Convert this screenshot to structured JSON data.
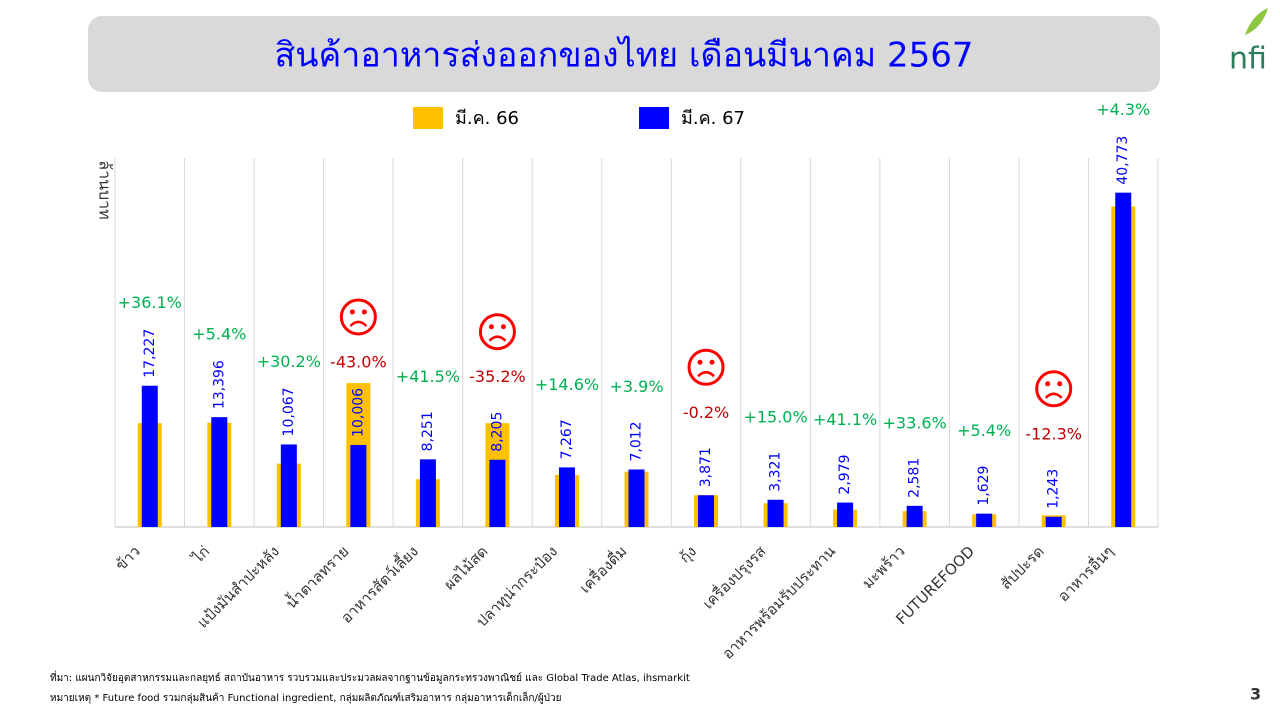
{
  "chart_data": {
    "type": "bar",
    "title": "สินค้าอาหารส่งออกของไทย เดือนมีนาคม 2567",
    "y_label": "ล้านบาท",
    "categories": [
      "ข้าว",
      "ไก่",
      "แป้งมันสำปะหลัง",
      "น้ำตาลทราย",
      "อาหารสัตว์เลี้ยง",
      "ผลไม้สด",
      "ปลาทูน่ากระป๋อง",
      "เครื่องดื่ม",
      "กุ้ง",
      "เครื่องปรุงรส",
      "อาหารพร้อมรับประทาน",
      "มะพร้าว",
      "FUTUREFOOD",
      "สัปปะรด",
      "อาหารอื่นๆ"
    ],
    "series": [
      {
        "name": "มี.ค. 66",
        "color": "#ffc000",
        "values": [
          12660,
          12710,
          7730,
          17550,
          5830,
          12660,
          6340,
          6750,
          3880,
          2890,
          2110,
          1930,
          1550,
          1420,
          39090
        ]
      },
      {
        "name": "มี.ค. 67",
        "color": "#0000ff",
        "values": [
          17227,
          13396,
          10067,
          10006,
          8251,
          8205,
          7267,
          7012,
          3871,
          3321,
          2979,
          2581,
          1629,
          1243,
          40773
        ],
        "value_labels": [
          "17,227",
          "13,396",
          "10,067",
          "10,006",
          "8,251",
          "8,205",
          "7,267",
          "7,012",
          "3,871",
          "3,321",
          "2,979",
          "2,581",
          "1,629",
          "1,243",
          "40,773"
        ]
      }
    ],
    "growth_labels": [
      "+36.1%",
      "+5.4%",
      "+30.2%",
      "-43.0%",
      "+41.5%",
      "-35.2%",
      "+14.6%",
      "+3.9%",
      "-0.2%",
      "+15.0%",
      "+41.1%",
      "+33.6%",
      "+5.4%",
      "-12.3%",
      "+4.3%"
    ],
    "ylim": [
      0,
      45000
    ],
    "grid": true
  },
  "footnotes": [
    "ที่มา: แผนกวิจัยอุตสาหกรรมและกลยุทธ์  สถาบันอาหาร รวบรวมและประมวลผลจากฐานข้อมูลกระทรวงพาณิชย์ และ Global Trade Atlas, ihsmarkit",
    "หมายเหตุ * Future food รวมกลุ่มสินค้า Functional ingredient, กลุ่มผลิตภัณฑ์เสริมอาหาร กลุ่มอาหารเด็กเล็ก/ผู้ป่วย"
  ],
  "logo": "nfi",
  "page_number": "3"
}
